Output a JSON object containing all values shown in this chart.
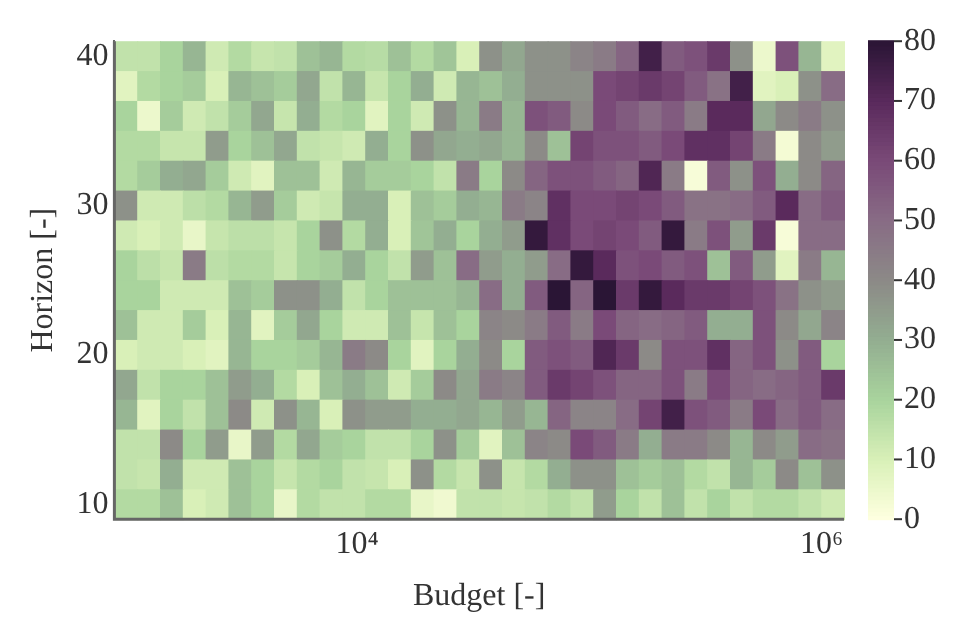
{
  "chart_data": {
    "type": "heatmap",
    "xlabel": "Budget [-]",
    "ylabel": "Horizon [-]",
    "log": "x",
    "xlim": [
      900,
      1250000
    ],
    "xticks": [
      {
        "value": 10000,
        "label": "10⁴"
      },
      {
        "value": 1000000,
        "label": "10⁶"
      }
    ],
    "ylim": [
      9,
      41
    ],
    "yticks": [
      10,
      20,
      30,
      40
    ],
    "clim": [
      0,
      80
    ],
    "cticks": [
      0,
      10,
      20,
      30,
      40,
      50,
      60,
      70,
      80
    ],
    "cells": [
      [
        15,
        15,
        20,
        28,
        12,
        18,
        14,
        15,
        25,
        28,
        18,
        17,
        25,
        18,
        24,
        10,
        38,
        32,
        38,
        38,
        42,
        45,
        52,
        75,
        55,
        58,
        65,
        38,
        5,
        58,
        28,
        8
      ],
      [
        8,
        18,
        20,
        22,
        10,
        28,
        25,
        22,
        32,
        15,
        28,
        14,
        20,
        30,
        12,
        28,
        25,
        30,
        38,
        38,
        38,
        60,
        62,
        65,
        62,
        55,
        48,
        75,
        8,
        10,
        38,
        50
      ],
      [
        20,
        5,
        22,
        12,
        15,
        22,
        32,
        14,
        30,
        18,
        20,
        8,
        20,
        12,
        38,
        28,
        45,
        28,
        58,
        55,
        40,
        60,
        55,
        50,
        55,
        45,
        70,
        70,
        32,
        40,
        45,
        38
      ],
      [
        18,
        18,
        14,
        14,
        35,
        20,
        25,
        32,
        15,
        14,
        12,
        30,
        20,
        38,
        32,
        30,
        32,
        28,
        40,
        25,
        62,
        58,
        58,
        55,
        60,
        68,
        68,
        62,
        45,
        3,
        40,
        35
      ],
      [
        18,
        22,
        30,
        32,
        22,
        12,
        8,
        25,
        25,
        12,
        28,
        22,
        22,
        20,
        15,
        45,
        20,
        40,
        52,
        58,
        58,
        55,
        52,
        72,
        45,
        2,
        55,
        38,
        58,
        30,
        40,
        52
      ],
      [
        38,
        12,
        12,
        16,
        18,
        28,
        35,
        22,
        12,
        14,
        30,
        30,
        10,
        25,
        22,
        30,
        28,
        45,
        42,
        68,
        60,
        60,
        62,
        60,
        55,
        48,
        48,
        50,
        55,
        70,
        50,
        55
      ],
      [
        12,
        10,
        12,
        6,
        14,
        16,
        16,
        14,
        20,
        38,
        18,
        30,
        10,
        24,
        30,
        20,
        30,
        35,
        78,
        68,
        60,
        62,
        60,
        55,
        78,
        45,
        58,
        35,
        65,
        2,
        50,
        50
      ],
      [
        20,
        16,
        14,
        45,
        16,
        18,
        18,
        14,
        20,
        22,
        30,
        20,
        15,
        35,
        25,
        50,
        35,
        30,
        35,
        50,
        78,
        70,
        58,
        60,
        55,
        58,
        25,
        55,
        35,
        8,
        45,
        28
      ],
      [
        20,
        20,
        12,
        12,
        12,
        25,
        22,
        38,
        38,
        30,
        15,
        20,
        25,
        25,
        25,
        28,
        50,
        30,
        55,
        80,
        52,
        80,
        65,
        78,
        70,
        65,
        65,
        62,
        58,
        48,
        38,
        35
      ],
      [
        25,
        12,
        12,
        22,
        10,
        28,
        8,
        22,
        32,
        20,
        12,
        12,
        25,
        14,
        25,
        20,
        42,
        40,
        45,
        55,
        45,
        60,
        52,
        50,
        52,
        55,
        30,
        30,
        58,
        40,
        32,
        42
      ],
      [
        10,
        12,
        12,
        10,
        8,
        28,
        20,
        20,
        22,
        28,
        45,
        40,
        20,
        8,
        20,
        30,
        40,
        20,
        55,
        58,
        55,
        72,
        65,
        40,
        58,
        58,
        68,
        52,
        58,
        38,
        55,
        20
      ],
      [
        32,
        15,
        20,
        20,
        25,
        35,
        30,
        18,
        10,
        25,
        30,
        25,
        12,
        22,
        40,
        32,
        45,
        42,
        55,
        65,
        62,
        58,
        52,
        52,
        58,
        45,
        60,
        52,
        50,
        52,
        55,
        65
      ],
      [
        28,
        8,
        20,
        15,
        25,
        40,
        12,
        38,
        28,
        10,
        38,
        35,
        35,
        30,
        30,
        32,
        28,
        35,
        28,
        52,
        42,
        42,
        50,
        62,
        75,
        58,
        55,
        45,
        60,
        50,
        55,
        50
      ],
      [
        15,
        15,
        40,
        20,
        35,
        6,
        35,
        18,
        32,
        22,
        20,
        15,
        15,
        20,
        38,
        22,
        8,
        25,
        42,
        40,
        60,
        55,
        45,
        30,
        45,
        45,
        40,
        28,
        40,
        35,
        50,
        48
      ],
      [
        15,
        14,
        30,
        12,
        12,
        25,
        20,
        14,
        18,
        20,
        15,
        14,
        10,
        38,
        18,
        14,
        38,
        14,
        18,
        30,
        38,
        38,
        25,
        22,
        25,
        18,
        15,
        28,
        22,
        40,
        25,
        38
      ],
      [
        18,
        18,
        25,
        10,
        12,
        25,
        20,
        6,
        18,
        15,
        15,
        18,
        18,
        6,
        4,
        15,
        15,
        14,
        15,
        18,
        15,
        35,
        20,
        15,
        25,
        15,
        20,
        15,
        18,
        18,
        15,
        12
      ]
    ]
  }
}
